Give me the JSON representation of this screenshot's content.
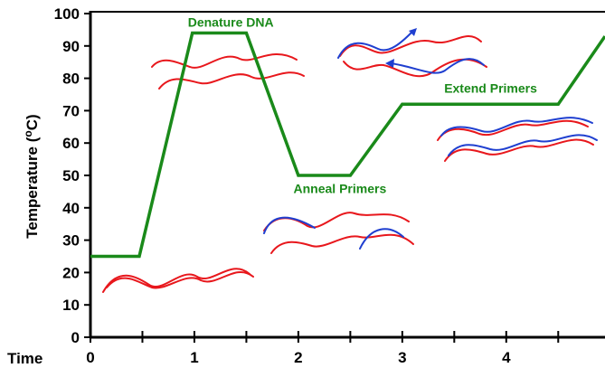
{
  "colors": {
    "profile": "#1a8a1a",
    "dna_red": "#e8171c",
    "primer_blue": "#1f3fd0",
    "axis": "#000000"
  },
  "chart_data": {
    "type": "line",
    "title": "",
    "xlabel": "Time",
    "ylabel": "Temperature (oC)",
    "ylabel_main": "Temperature (",
    "ylabel_sup": "o",
    "ylabel_end": "C)",
    "xlim": [
      0,
      4.95
    ],
    "ylim": [
      0,
      100
    ],
    "x_ticks": [
      0,
      0.5,
      1,
      1.5,
      2,
      2.5,
      3,
      3.5,
      4,
      4.5
    ],
    "x_tick_labels": [
      "0",
      "1",
      "2",
      "3",
      "4"
    ],
    "x_tick_label_values": [
      0,
      1,
      2,
      3,
      4
    ],
    "y_ticks": [
      0,
      10,
      20,
      30,
      40,
      50,
      60,
      70,
      80,
      90,
      100
    ],
    "grid": false,
    "series": [
      {
        "x": [
          0,
          0.47,
          0.98,
          1.5,
          2.0,
          2.5,
          3.0,
          4.5,
          4.95
        ],
        "y": [
          25,
          25,
          94,
          94,
          50,
          50,
          72,
          72,
          93
        ]
      }
    ],
    "annotations": [
      {
        "text": "Denature DNA",
        "x": 1.35,
        "y": 96
      },
      {
        "text": "Anneal Primers",
        "x": 2.4,
        "y": 44.5
      },
      {
        "text": "Extend Primers",
        "x": 3.85,
        "y": 75.5
      }
    ]
  }
}
